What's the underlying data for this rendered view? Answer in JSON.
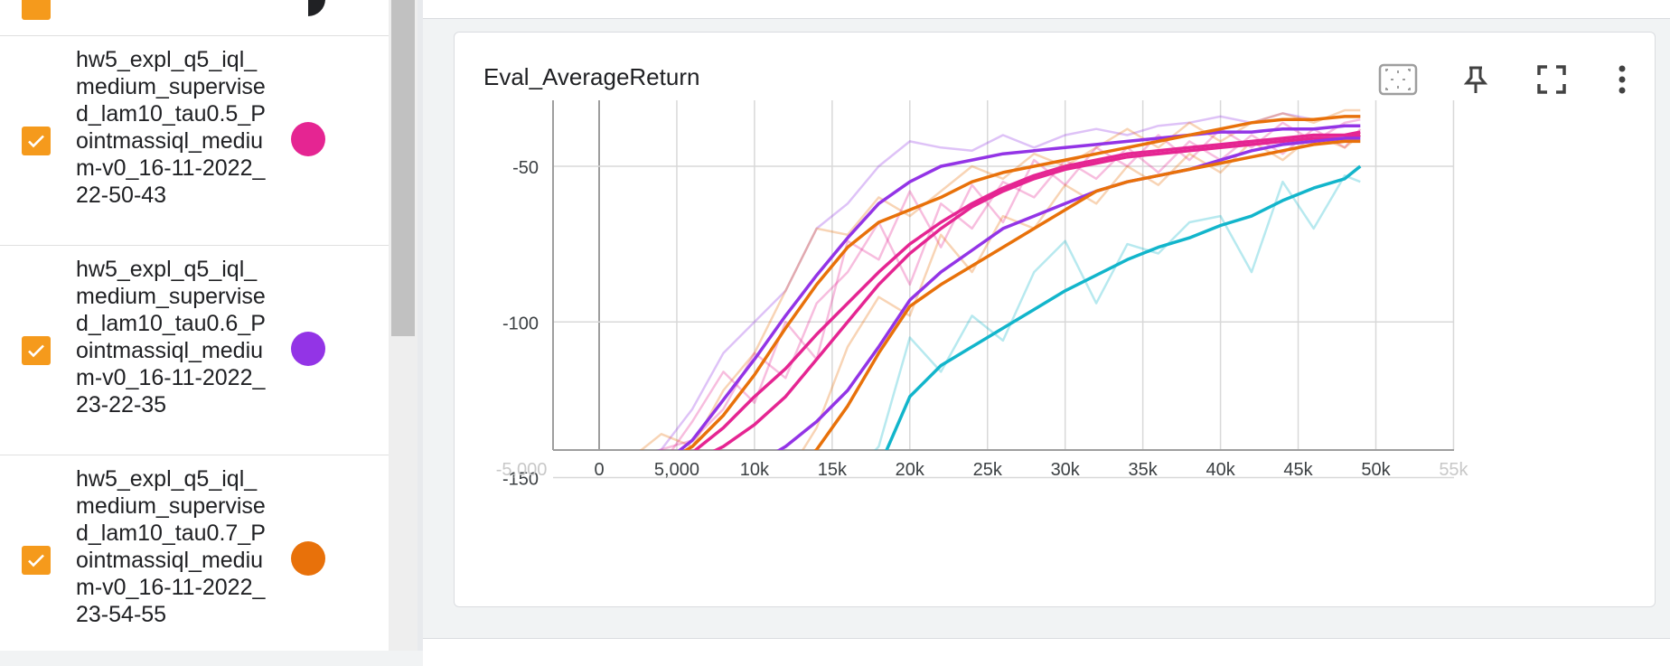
{
  "runs": [
    {
      "name": "hw5_expl_q5_iql_medium_supervised_lam10_tau0.5_Pointmassiql_medium-v0_16-11-2022_22-50-43",
      "color": "#e52592",
      "checked": true
    },
    {
      "name": "hw5_expl_q5_iql_medium_supervised_lam10_tau0.6_Pointmassiql_medium-v0_16-11-2022_23-22-35",
      "color": "#9334e6",
      "checked": true
    },
    {
      "name": "hw5_expl_q5_iql_medium_supervised_lam10_tau0.7_Pointmassiql_medium-v0_16-11-2022_23-54-55",
      "color": "#e8710a",
      "checked": true
    }
  ],
  "chart": {
    "title": "Eval_AverageReturn",
    "tools": [
      "fit-domain-icon",
      "pin-icon",
      "fullscreen-icon",
      "more-vert-icon"
    ]
  },
  "chart_data": {
    "type": "line",
    "title": "Eval_AverageReturn",
    "xlabel": "",
    "ylabel": "",
    "xlim": [
      -5000,
      55000
    ],
    "ylim": [
      -160,
      -30
    ],
    "x_ticks": [
      "-5,000",
      "0",
      "5,000",
      "10k",
      "15k",
      "20k",
      "25k",
      "30k",
      "35k",
      "40k",
      "45k",
      "50k",
      "55k"
    ],
    "y_ticks": [
      "-50",
      "-100",
      "-150"
    ],
    "grid": true,
    "series": [
      {
        "color": "#9334e6",
        "smoothed": true,
        "x": [
          0,
          2000,
          4000,
          6000,
          8000,
          10000,
          12000,
          14000,
          16000,
          18000,
          20000,
          22000,
          24000,
          26000,
          28000,
          30000,
          32000,
          34000,
          36000,
          38000,
          40000,
          42000,
          44000,
          46000,
          48000,
          49000
        ],
        "y": [
          -150,
          -150,
          -146,
          -138,
          -125,
          -112,
          -98,
          -85,
          -73,
          -62,
          -55,
          -50,
          -48,
          -46,
          -45,
          -44,
          -43,
          -42,
          -41,
          -40,
          -39,
          -39,
          -38,
          -38,
          -37,
          -37
        ]
      },
      {
        "color": "#e8710a",
        "smoothed": true,
        "x": [
          0,
          2000,
          4000,
          6000,
          8000,
          10000,
          12000,
          14000,
          16000,
          18000,
          20000,
          22000,
          24000,
          26000,
          28000,
          30000,
          32000,
          34000,
          36000,
          38000,
          40000,
          42000,
          44000,
          46000,
          48000,
          49000
        ],
        "y": [
          -150,
          -149,
          -146,
          -140,
          -130,
          -117,
          -102,
          -88,
          -76,
          -68,
          -64,
          -60,
          -55,
          -52,
          -50,
          -48,
          -46,
          -44,
          -42,
          -40,
          -38,
          -36,
          -35,
          -35,
          -34,
          -34
        ]
      },
      {
        "color": "#e52592",
        "smoothed": true,
        "x": [
          0,
          2000,
          4000,
          6000,
          8000,
          10000,
          12000,
          14000,
          16000,
          18000,
          20000,
          22000,
          24000,
          26000,
          28000,
          30000,
          32000,
          34000,
          36000,
          38000,
          40000,
          42000,
          44000,
          46000,
          48000,
          49000
        ],
        "y": [
          -150,
          -150,
          -147,
          -142,
          -134,
          -124,
          -115,
          -104,
          -94,
          -84,
          -75,
          -68,
          -62,
          -57,
          -53,
          -50,
          -48,
          -46,
          -45,
          -44,
          -43,
          -42,
          -41,
          -40,
          -40,
          -39
        ]
      },
      {
        "color": "#e52592",
        "smoothed": true,
        "x": [
          0,
          2000,
          4000,
          6000,
          8000,
          10000,
          12000,
          14000,
          16000,
          18000,
          20000,
          22000,
          24000,
          26000,
          28000,
          30000,
          32000,
          34000,
          36000,
          38000,
          40000,
          42000,
          44000,
          46000,
          48000,
          49000
        ],
        "y": [
          -150,
          -150,
          -148,
          -145,
          -140,
          -133,
          -124,
          -112,
          -100,
          -88,
          -78,
          -70,
          -63,
          -58,
          -54,
          -51,
          -49,
          -47,
          -46,
          -45,
          -44,
          -43,
          -42,
          -41,
          -41,
          -40
        ]
      },
      {
        "color": "#9334e6",
        "smoothed": true,
        "x": [
          0,
          2000,
          4000,
          6000,
          8000,
          10000,
          12000,
          14000,
          16000,
          18000,
          20000,
          22000,
          24000,
          26000,
          28000,
          30000,
          32000,
          34000,
          36000,
          38000,
          40000,
          42000,
          44000,
          46000,
          48000,
          49000
        ],
        "y": [
          -150,
          -150,
          -150,
          -150,
          -149,
          -146,
          -140,
          -132,
          -122,
          -108,
          -93,
          -84,
          -77,
          -70,
          -66,
          -62,
          -58,
          -55,
          -53,
          -51,
          -48,
          -45,
          -43,
          -42,
          -41,
          -41
        ]
      },
      {
        "color": "#e8710a",
        "smoothed": true,
        "x": [
          0,
          2000,
          4000,
          6000,
          8000,
          10000,
          12000,
          14000,
          16000,
          18000,
          20000,
          22000,
          24000,
          26000,
          28000,
          30000,
          32000,
          34000,
          36000,
          38000,
          40000,
          42000,
          44000,
          46000,
          48000,
          49000
        ],
        "y": [
          -150,
          -150,
          -148,
          -146,
          -147,
          -149,
          -150,
          -141,
          -127,
          -110,
          -95,
          -88,
          -82,
          -76,
          -70,
          -64,
          -58,
          -55,
          -53,
          -51,
          -49,
          -47,
          -45,
          -43,
          -42,
          -42
        ]
      },
      {
        "color": "#12b5cb",
        "smoothed": true,
        "x": [
          0,
          2000,
          4000,
          6000,
          8000,
          10000,
          12000,
          14000,
          16000,
          18000,
          20000,
          22000,
          24000,
          26000,
          28000,
          30000,
          32000,
          34000,
          36000,
          38000,
          40000,
          42000,
          44000,
          46000,
          48000,
          49000
        ],
        "y": [
          -150,
          -149,
          -149,
          -150,
          -150,
          -150,
          -149,
          -150,
          -150,
          -147,
          -124,
          -114,
          -108,
          -102,
          -96,
          -90,
          -85,
          -80,
          -76,
          -73,
          -69,
          -66,
          -61,
          -57,
          -54,
          -50
        ]
      },
      {
        "color": "#9334e6",
        "smoothed": false,
        "x": [
          0,
          2000,
          4000,
          6000,
          8000,
          10000,
          12000,
          14000,
          16000,
          18000,
          20000,
          22000,
          24000,
          26000,
          28000,
          30000,
          32000,
          34000,
          36000,
          38000,
          40000,
          42000,
          44000,
          46000,
          48000,
          49000
        ],
        "y": [
          -150,
          -144,
          -141,
          -128,
          -110,
          -100,
          -90,
          -70,
          -62,
          -50,
          -42,
          -44,
          -45,
          -40,
          -44,
          -40,
          -38,
          -40,
          -37,
          -36,
          -34,
          -36,
          -33,
          -35,
          -34,
          -34
        ]
      },
      {
        "color": "#e8710a",
        "smoothed": false,
        "x": [
          0,
          2000,
          4000,
          6000,
          8000,
          10000,
          12000,
          14000,
          16000,
          18000,
          20000,
          22000,
          24000,
          26000,
          28000,
          30000,
          32000,
          34000,
          36000,
          38000,
          40000,
          42000,
          44000,
          46000,
          48000,
          49000
        ],
        "y": [
          -150,
          -144,
          -136,
          -140,
          -122,
          -110,
          -90,
          -70,
          -72,
          -60,
          -66,
          -58,
          -50,
          -54,
          -46,
          -50,
          -44,
          -38,
          -44,
          -36,
          -42,
          -36,
          -33,
          -36,
          -32,
          -32
        ]
      },
      {
        "color": "#e52592",
        "smoothed": false,
        "x": [
          0,
          2000,
          4000,
          6000,
          8000,
          10000,
          12000,
          14000,
          16000,
          18000,
          20000,
          22000,
          24000,
          26000,
          28000,
          30000,
          32000,
          34000,
          36000,
          38000,
          40000,
          42000,
          44000,
          46000,
          48000,
          49000
        ],
        "y": [
          -150,
          -143,
          -146,
          -132,
          -116,
          -126,
          -100,
          -112,
          -74,
          -80,
          -58,
          -76,
          -56,
          -68,
          -48,
          -56,
          -44,
          -50,
          -40,
          -48,
          -38,
          -44,
          -36,
          -42,
          -36,
          -35
        ]
      },
      {
        "color": "#e52592",
        "smoothed": false,
        "x": [
          0,
          2000,
          4000,
          6000,
          8000,
          10000,
          12000,
          14000,
          16000,
          18000,
          20000,
          22000,
          24000,
          26000,
          28000,
          30000,
          32000,
          34000,
          36000,
          38000,
          40000,
          42000,
          44000,
          46000,
          48000,
          49000
        ],
        "y": [
          -150,
          -147,
          -141,
          -138,
          -128,
          -110,
          -118,
          -94,
          -84,
          -68,
          -88,
          -62,
          -70,
          -55,
          -60,
          -48,
          -54,
          -44,
          -52,
          -42,
          -48,
          -40,
          -46,
          -38,
          -44,
          -38
        ]
      },
      {
        "color": "#e8710a",
        "smoothed": false,
        "x": [
          0,
          2000,
          4000,
          6000,
          8000,
          10000,
          12000,
          14000,
          16000,
          18000,
          20000,
          22000,
          24000,
          26000,
          28000,
          30000,
          32000,
          34000,
          36000,
          38000,
          40000,
          42000,
          44000,
          46000,
          48000,
          49000
        ],
        "y": [
          -150,
          -148,
          -146,
          -150,
          -150,
          -149,
          -150,
          -134,
          -108,
          -92,
          -98,
          -72,
          -84,
          -66,
          -70,
          -56,
          -62,
          -50,
          -56,
          -46,
          -52,
          -42,
          -48,
          -40,
          -44,
          -40
        ]
      },
      {
        "color": "#12b5cb",
        "smoothed": false,
        "x": [
          0,
          2000,
          4000,
          6000,
          8000,
          10000,
          12000,
          14000,
          16000,
          18000,
          20000,
          22000,
          24000,
          26000,
          28000,
          30000,
          32000,
          34000,
          36000,
          38000,
          40000,
          42000,
          44000,
          46000,
          48000,
          49000
        ],
        "y": [
          -150,
          -148,
          -151,
          -148,
          -150,
          -150,
          -146,
          -150,
          -151,
          -140,
          -105,
          -116,
          -98,
          -106,
          -84,
          -74,
          -94,
          -75,
          -78,
          -68,
          -66,
          -84,
          -55,
          -70,
          -53,
          -55
        ]
      }
    ]
  }
}
